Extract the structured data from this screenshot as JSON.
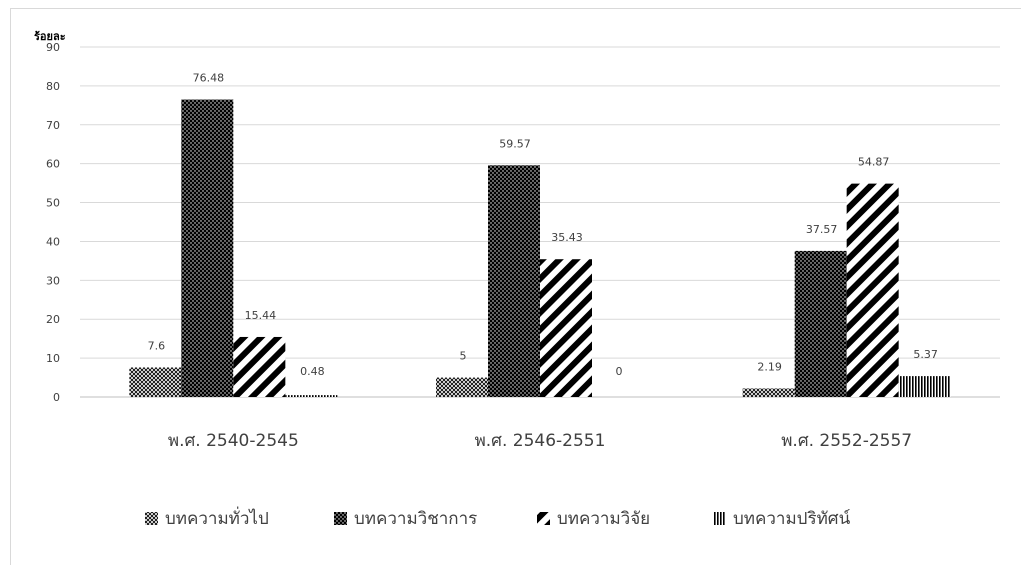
{
  "chart_data": {
    "type": "bar",
    "ylabel": "ร้อยละ",
    "ylim": [
      0,
      90
    ],
    "yticks": [
      0,
      10,
      20,
      30,
      40,
      50,
      60,
      70,
      80,
      90
    ],
    "grid": true,
    "legend_position": "bottom",
    "categories": [
      "พ.ศ. 2540-2545",
      "พ.ศ. 2546-2551",
      "พ.ศ. 2552-2557"
    ],
    "series": [
      {
        "name": "บทความทั่วไป",
        "values": [
          7.6,
          5,
          2.19
        ],
        "labels": [
          "7.6",
          "5",
          "2.19"
        ],
        "pattern": "crosshatch"
      },
      {
        "name": "บทความวิชาการ",
        "values": [
          76.48,
          59.57,
          37.57
        ],
        "labels": [
          "76.48",
          "59.57",
          "37.57"
        ],
        "pattern": "dots"
      },
      {
        "name": "บทความวิจัย",
        "values": [
          15.44,
          35.43,
          54.87
        ],
        "labels": [
          "15.44",
          "35.43",
          "54.87"
        ],
        "pattern": "diagonal"
      },
      {
        "name": "บทความปริทัศน์",
        "values": [
          0.48,
          0,
          5.37
        ],
        "labels": [
          "0.48",
          "0",
          "5.37"
        ],
        "pattern": "vertical"
      }
    ],
    "colors": {
      "bar": "#000000",
      "grid": "#d9d9d9",
      "text": "#404040"
    }
  }
}
